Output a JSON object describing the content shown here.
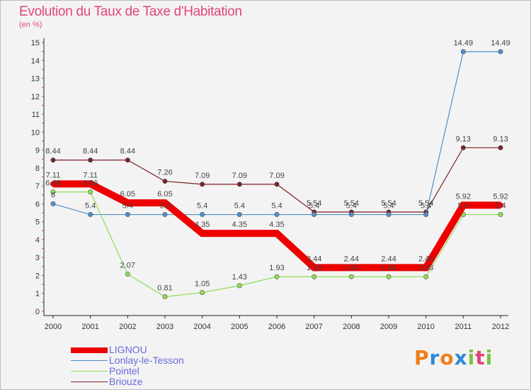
{
  "title": "Evolution du Taux de Taxe d'Habitation",
  "subtitle": "(en %)",
  "brand": {
    "letters": [
      "P",
      "r",
      "o",
      "x",
      "i",
      "t",
      "i"
    ],
    "colors": [
      "#f07d1a",
      "#2c8ad8",
      "#f07d1a",
      "#2c8ad8",
      "#7cc23f",
      "#e0457a",
      "#7cc23f"
    ]
  },
  "chart_data": {
    "type": "line",
    "title": "Evolution du Taux de Taxe d'Habitation",
    "ylabel": "(en %)",
    "x": [
      "2000",
      "2001",
      "2002",
      "2003",
      "2004",
      "2005",
      "2006",
      "2007",
      "2008",
      "2009",
      "2010",
      "2011",
      "2012"
    ],
    "ylim": [
      0,
      15
    ],
    "yticks": [
      "0",
      "1",
      "2",
      "3",
      "4",
      "5",
      "6",
      "7",
      "8",
      "9",
      "10",
      "11",
      "12",
      "13",
      "14",
      "15"
    ],
    "grid": false,
    "legend": "bottom-left",
    "series": [
      {
        "name": "LIGNOU",
        "color": "#ee0000",
        "values": [
          7.11,
          7.11,
          6.05,
          6.05,
          4.35,
          4.35,
          4.35,
          2.44,
          2.44,
          2.44,
          2.44,
          5.92,
          5.92
        ],
        "labels": [
          "7.11",
          "7.11",
          "6.05",
          "6.05",
          "4.35",
          "4.35",
          "4.35",
          "2.44",
          "2.44",
          "2.44",
          "2.44",
          "5.92",
          "5.92"
        ]
      },
      {
        "name": "Lonlay-le-Tesson",
        "color": "#4f8fcc",
        "values": [
          6,
          5.4,
          5.4,
          5.4,
          5.4,
          5.4,
          5.4,
          5.4,
          5.4,
          5.4,
          5.4,
          14.49,
          14.49
        ],
        "labels": [
          "6",
          "5.4",
          "5.4",
          "5.4",
          "5.4",
          "5.4",
          "5.4",
          "5.4",
          "5.4",
          "5.4",
          "5.4",
          "14.49",
          "14.49"
        ]
      },
      {
        "name": "Pointel",
        "color": "#8ede52",
        "values": [
          6.66,
          6.66,
          2.07,
          0.81,
          1.05,
          1.43,
          1.93,
          1.93,
          1.93,
          1.93,
          1.93,
          5.4,
          5.4
        ],
        "labels": [
          "6.66",
          "6.66",
          "2.07",
          "0.81",
          "1.05",
          "1.43",
          "1.93",
          "1.93",
          "1.93",
          "1.93",
          "1.93",
          "5.4",
          "5.4"
        ]
      },
      {
        "name": "Briouze",
        "color": "#7b1f27",
        "values": [
          8.44,
          8.44,
          8.44,
          7.26,
          7.09,
          7.09,
          7.09,
          5.54,
          5.54,
          5.54,
          5.54,
          9.13,
          9.13
        ],
        "labels": [
          "8.44",
          "8.44",
          "8.44",
          "7.26",
          "7.09",
          "7.09",
          "7.09",
          "5.54",
          "5.54",
          "5.54",
          "5.54",
          "9.13",
          "9.13"
        ]
      }
    ]
  }
}
